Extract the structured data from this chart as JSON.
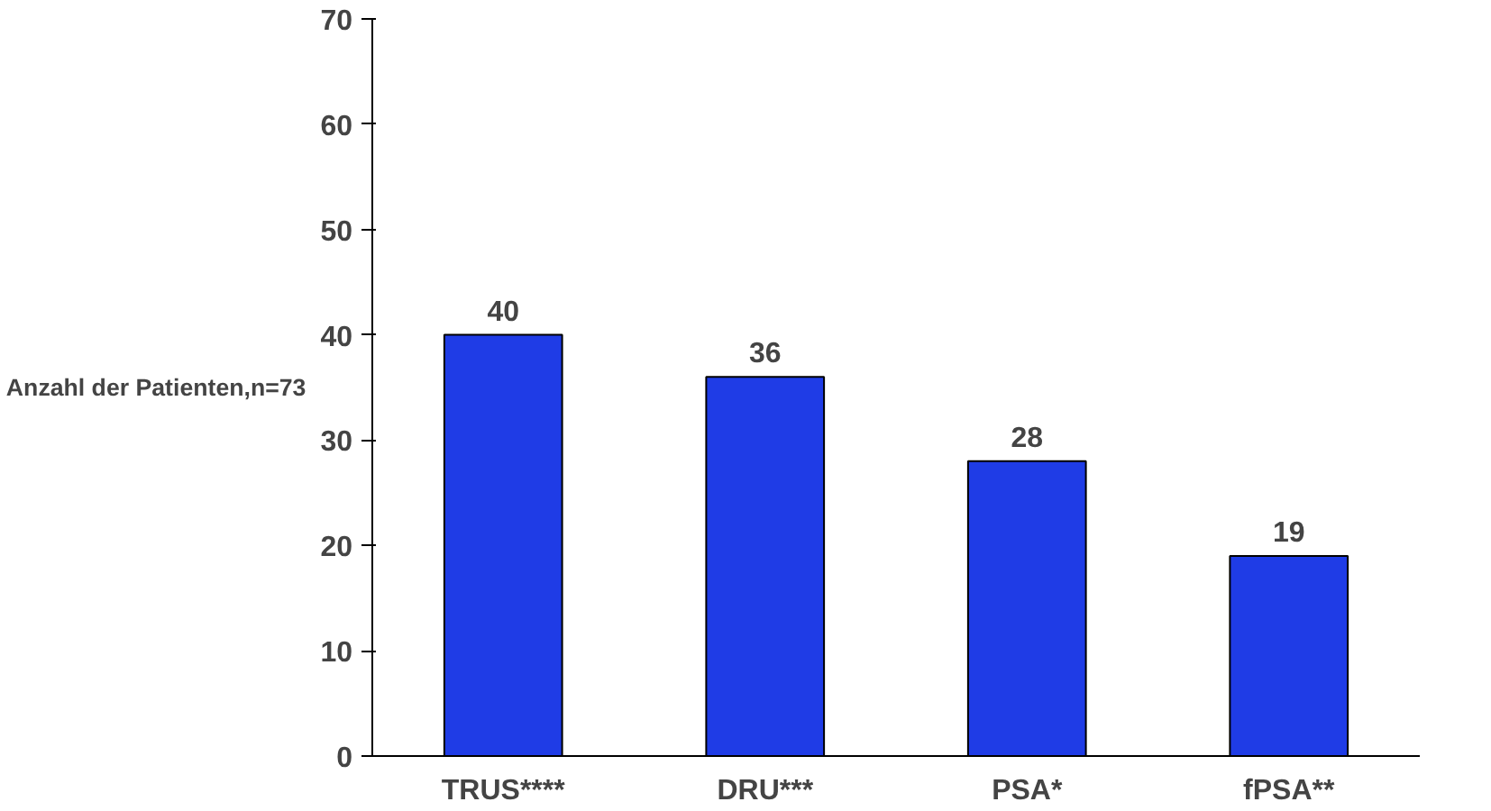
{
  "chart_data": {
    "type": "bar",
    "ylabel": "Anzahl der Patienten,n=73",
    "categories": [
      "TRUS****",
      "DRU***",
      "PSA*",
      "fPSA**"
    ],
    "values": [
      40,
      36,
      28,
      19
    ],
    "color": "#1f3ce6",
    "ylim": [
      0,
      70
    ],
    "yticks": [
      0,
      10,
      20,
      30,
      40,
      50,
      60,
      70
    ],
    "data_labels": true
  }
}
